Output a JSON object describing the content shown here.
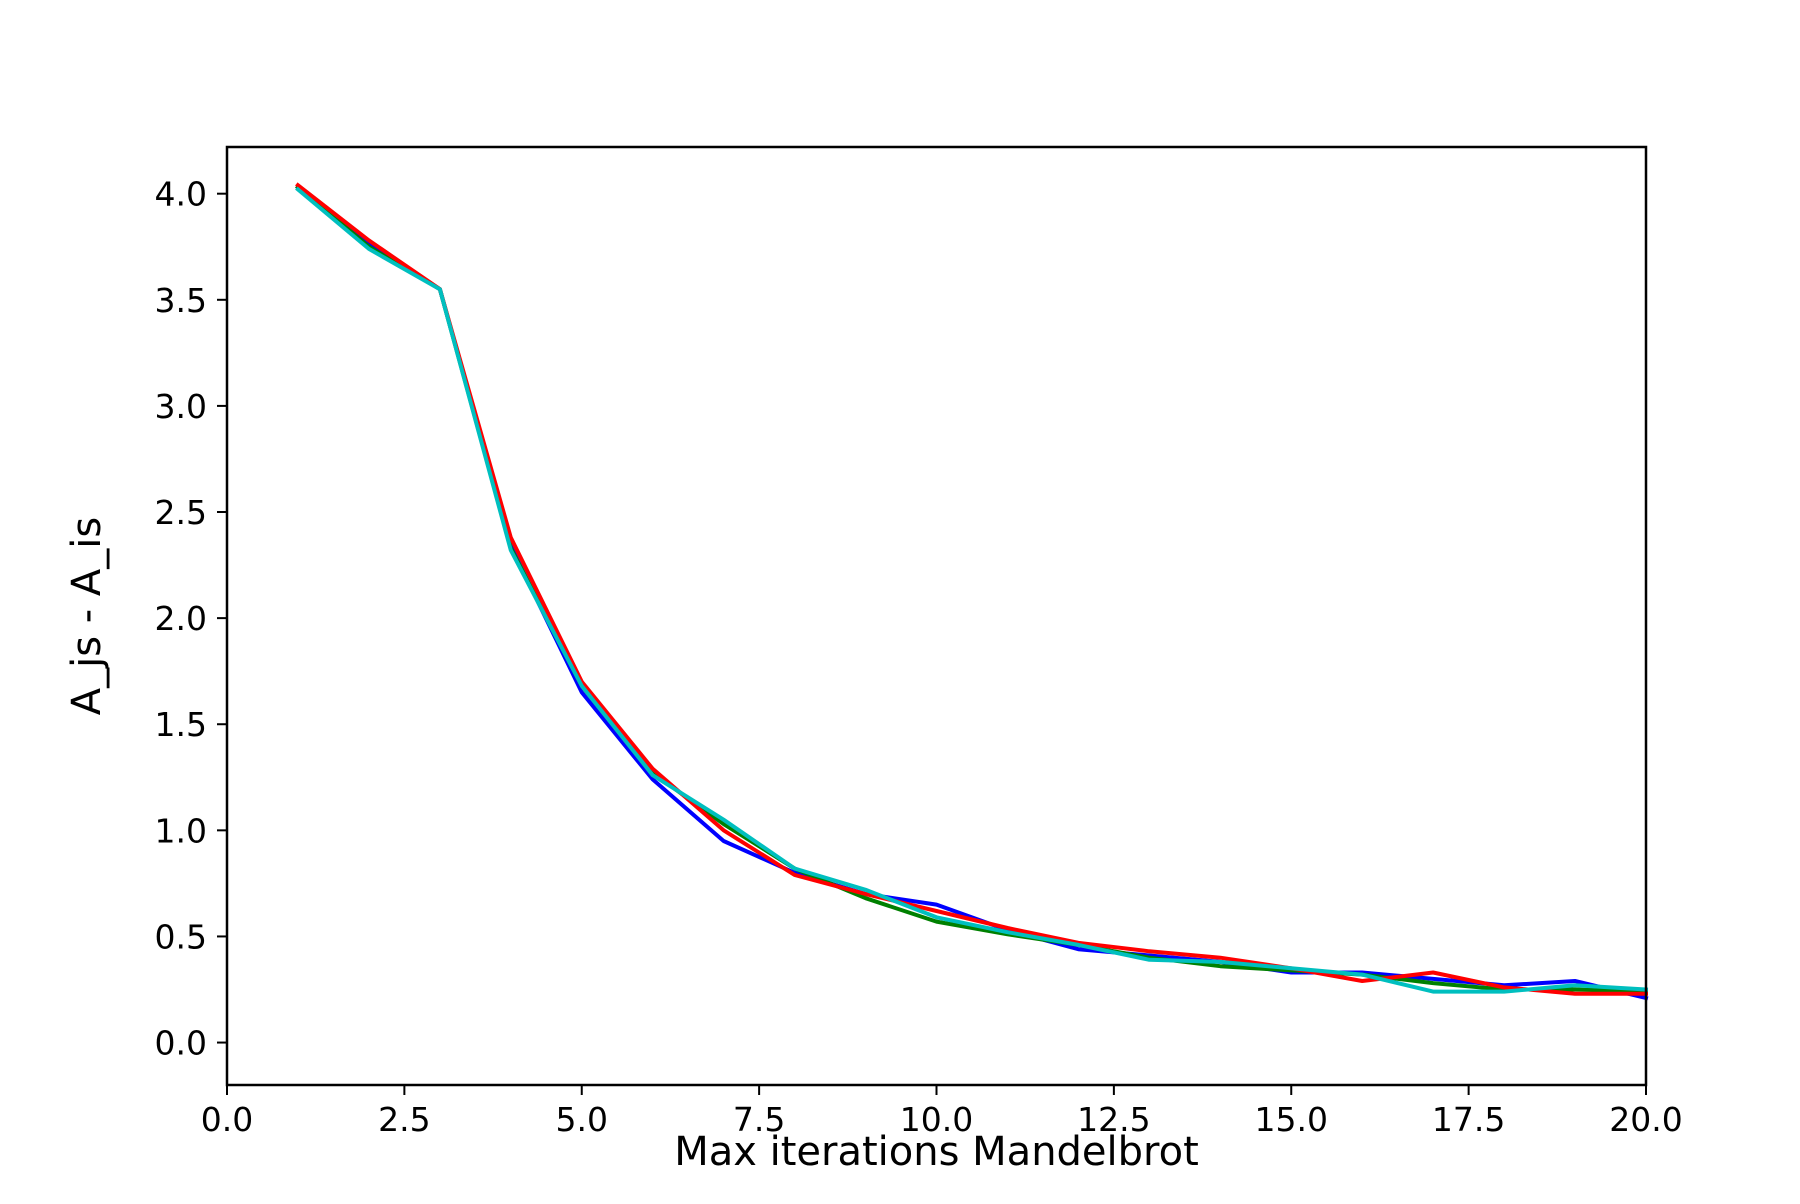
{
  "chart_data": {
    "type": "line",
    "title": "",
    "xlabel": "Max iterations Mandelbrot",
    "ylabel": "A_js - A_is",
    "xlim": [
      0,
      20
    ],
    "ylim": [
      -0.2,
      4.22
    ],
    "xticks": [
      0,
      2.5,
      5,
      7.5,
      10,
      12.5,
      15,
      17.5,
      20
    ],
    "xtick_labels": [
      "0.0",
      "2.5",
      "5.0",
      "7.5",
      "10.0",
      "12.5",
      "15.0",
      "17.5",
      "20.0"
    ],
    "yticks": [
      0,
      0.5,
      1,
      1.5,
      2,
      2.5,
      3,
      3.5,
      4
    ],
    "ytick_labels": [
      "0.0",
      "0.5",
      "1.0",
      "1.5",
      "2.0",
      "2.5",
      "3.0",
      "3.5",
      "4.0"
    ],
    "grid": false,
    "legend": false,
    "x": [
      1,
      2,
      3,
      4,
      5,
      6,
      7,
      8,
      9,
      10,
      11,
      12,
      13,
      14,
      15,
      16,
      17,
      18,
      19,
      20
    ],
    "series": [
      {
        "color": "#0000ff",
        "values": [
          4.03,
          3.76,
          3.55,
          2.34,
          1.65,
          1.24,
          0.95,
          0.8,
          0.7,
          0.65,
          0.53,
          0.44,
          0.41,
          0.38,
          0.33,
          0.33,
          0.3,
          0.27,
          0.29,
          0.21
        ]
      },
      {
        "color": "#008000",
        "values": [
          4.03,
          3.75,
          3.55,
          2.33,
          1.68,
          1.27,
          1.03,
          0.82,
          0.68,
          0.57,
          0.51,
          0.46,
          0.4,
          0.36,
          0.34,
          0.32,
          0.28,
          0.25,
          0.25,
          0.24
        ]
      },
      {
        "color": "#ff0000",
        "values": [
          4.04,
          3.78,
          3.55,
          2.38,
          1.7,
          1.29,
          1.0,
          0.79,
          0.7,
          0.62,
          0.54,
          0.47,
          0.43,
          0.4,
          0.35,
          0.29,
          0.33,
          0.26,
          0.23,
          0.23
        ]
      },
      {
        "color": "#00bfbf",
        "values": [
          4.02,
          3.74,
          3.55,
          2.32,
          1.68,
          1.26,
          1.05,
          0.82,
          0.72,
          0.59,
          0.52,
          0.46,
          0.39,
          0.38,
          0.35,
          0.32,
          0.24,
          0.24,
          0.27,
          0.25
        ]
      }
    ]
  }
}
